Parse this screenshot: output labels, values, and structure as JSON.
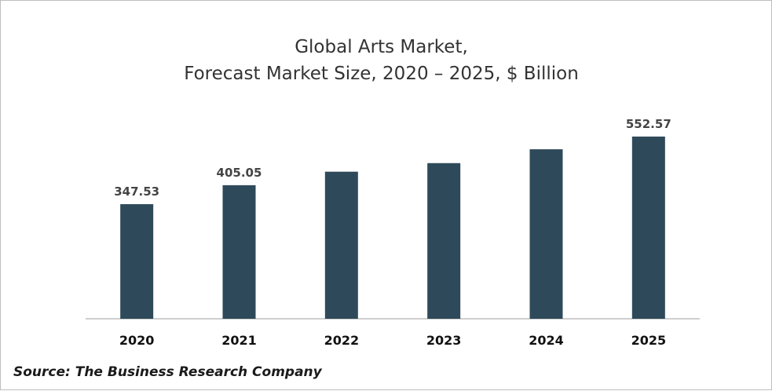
{
  "chart_data": {
    "type": "bar",
    "title_lines": [
      "Global Arts Market,",
      "Forecast Market Size, 2020 – 2025, $ Billion"
    ],
    "categories": [
      "2020",
      "2021",
      "2022",
      "2023",
      "2024",
      "2025"
    ],
    "values": [
      347.53,
      405.05,
      446,
      472,
      514,
      552.57
    ],
    "data_labels": [
      "347.53",
      "405.05",
      "",
      "",
      "",
      "552.57"
    ],
    "ylim": [
      0,
      600
    ],
    "grid": false,
    "legend": "none",
    "bar_color": "#2e4a5a",
    "axis_color": "#bfbfbf"
  },
  "source": "Source: The Business Research Company"
}
